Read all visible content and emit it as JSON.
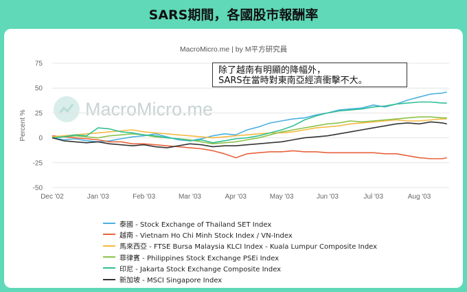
{
  "banner_title": "SARS期間，各國股市報酬率",
  "subtitle": "MacroMicro.me | by M平方研究員",
  "watermark": "MacroMicro.me",
  "annotation": [
    "除了越南有明顯的降幅外，",
    "SARS在當時對東南亞經濟衝擊不大。"
  ],
  "chart_data": {
    "type": "line",
    "ylabel": "Percent %",
    "ylim": [
      -50,
      75
    ],
    "yticks": [
      75,
      50,
      25,
      0,
      -25,
      -50
    ],
    "xlim": [
      0,
      8.65
    ],
    "xticks": [
      {
        "label": "Dec '02",
        "x": 0
      },
      {
        "label": "Jan '03",
        "x": 1
      },
      {
        "label": "Feb '03",
        "x": 2
      },
      {
        "label": "Mar '03",
        "x": 3
      },
      {
        "label": "Apr '03",
        "x": 4
      },
      {
        "label": "May '03",
        "x": 5
      },
      {
        "label": "Jun '03",
        "x": 6
      },
      {
        "label": "Jul '03",
        "x": 7
      },
      {
        "label": "Aug '03",
        "x": 8
      }
    ],
    "x": [
      0,
      0.25,
      0.5,
      0.75,
      1,
      1.25,
      1.5,
      1.75,
      2,
      2.25,
      2.5,
      2.75,
      3,
      3.25,
      3.5,
      3.75,
      4,
      4.25,
      4.5,
      4.75,
      5,
      5.25,
      5.5,
      5.75,
      6,
      6.25,
      6.5,
      6.75,
      7,
      7.25,
      7.5,
      7.75,
      8,
      8.25,
      8.5,
      8.6
    ],
    "series": [
      {
        "name": "泰國 - Stock Exchange of Thailand SET Index",
        "color": "#4ab0e0",
        "values": [
          0,
          -2,
          -1,
          -3,
          -4,
          -3,
          -1,
          1,
          2,
          4,
          1,
          -2,
          -3,
          -1,
          2,
          4,
          3,
          8,
          11,
          15,
          17,
          19,
          20,
          23,
          25,
          28,
          29,
          30,
          33,
          31,
          34,
          38,
          41,
          44,
          45,
          46
        ]
      },
      {
        "name": "越南 - Vietnam Ho Chi Minh Stock Index / VN-Index",
        "color": "#e8623c",
        "values": [
          2,
          1,
          0,
          -1,
          -2,
          -4,
          -4,
          -6,
          -6,
          -7,
          -8,
          -9,
          -10,
          -11,
          -13,
          -16,
          -20,
          -16,
          -15,
          -14,
          -14,
          -13,
          -14,
          -14,
          -15,
          -15,
          -15,
          -15,
          -15,
          -16,
          -16,
          -18,
          -20,
          -21,
          -21,
          -20
        ]
      },
      {
        "name": "馬來西亞 - FTSE Bursa Malaysia KLCI Index - Kuala Lumpur Composite Index",
        "color": "#f5b942",
        "values": [
          1,
          2,
          3,
          4,
          5,
          6,
          7,
          8,
          6,
          5,
          4,
          3,
          2,
          1,
          0,
          1,
          2,
          3,
          4,
          5,
          5,
          6,
          8,
          10,
          11,
          12,
          14,
          15,
          16,
          17,
          18,
          17,
          17,
          18,
          19,
          19
        ]
      },
      {
        "name": "菲律賓 - Philippines Stock Exchange PSEi Index",
        "color": "#8cc24a",
        "values": [
          0,
          1,
          2,
          1,
          0,
          2,
          3,
          4,
          3,
          1,
          0,
          -1,
          -2,
          -4,
          -6,
          -5,
          -4,
          -2,
          0,
          3,
          6,
          8,
          10,
          12,
          14,
          15,
          17,
          16,
          17,
          18,
          19,
          20,
          21,
          21,
          20,
          20
        ]
      },
      {
        "name": "印尼 - Jakarta Stock Exchange Composite Index",
        "color": "#2fbf93",
        "values": [
          0,
          1,
          3,
          2,
          10,
          9,
          6,
          5,
          3,
          2,
          0,
          -1,
          -3,
          -2,
          -5,
          -3,
          -1,
          0,
          2,
          5,
          8,
          12,
          18,
          22,
          25,
          27,
          28,
          29,
          31,
          32,
          34,
          35,
          36,
          36,
          35,
          35
        ]
      },
      {
        "name": "新加坡 - MSCI Singapore Index",
        "color": "#333333",
        "values": [
          0,
          -3,
          -4,
          -5,
          -4,
          -6,
          -7,
          -8,
          -7,
          -9,
          -10,
          -8,
          -6,
          -7,
          -9,
          -8,
          -8,
          -7,
          -6,
          -5,
          -4,
          -2,
          0,
          1,
          2,
          4,
          6,
          8,
          10,
          12,
          14,
          15,
          14,
          16,
          15,
          14
        ]
      }
    ]
  }
}
